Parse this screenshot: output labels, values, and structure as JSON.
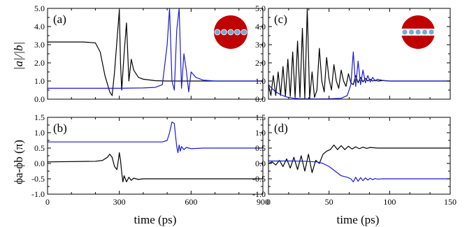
{
  "chart_data": [
    {
      "type": "line",
      "panel_label": "(a)",
      "xlim": [
        0,
        900
      ],
      "ylim": [
        0.0,
        5.0
      ],
      "yticks": [
        "0.0",
        "1.0",
        "2.0",
        "3.0",
        "4.0",
        "5.0"
      ],
      "xticks": [],
      "ylabel": "|a|/|b|",
      "grid": false,
      "series": [
        {
          "color": "#000000",
          "x": [
            0,
            150,
            200,
            220,
            240,
            260,
            270,
            280,
            290,
            300,
            305,
            310,
            320,
            330,
            340,
            350,
            360,
            380,
            400,
            450,
            500,
            600,
            700,
            800,
            900
          ],
          "y": [
            3.15,
            3.15,
            3.1,
            2.6,
            1.3,
            0.4,
            0.2,
            1.5,
            3.2,
            4.9,
            2.0,
            0.5,
            2.5,
            4.2,
            1.0,
            2.2,
            1.6,
            1.2,
            1.1,
            1.02,
            1.0,
            1.0,
            1.0,
            1.0,
            1.0
          ]
        },
        {
          "color": "#1a1ad6",
          "x": [
            0,
            200,
            300,
            400,
            450,
            480,
            500,
            510,
            520,
            530,
            540,
            550,
            560,
            570,
            580,
            590,
            600,
            620,
            650,
            700,
            800,
            900
          ],
          "y": [
            0.6,
            0.6,
            0.6,
            0.62,
            0.65,
            0.8,
            3.0,
            5.0,
            1.0,
            0.5,
            3.8,
            5.0,
            0.6,
            2.5,
            1.6,
            0.4,
            1.5,
            1.2,
            1.05,
            1.0,
            1.0,
            1.0
          ]
        }
      ],
      "inset": "red-disk-with-horizontal-chain"
    },
    {
      "type": "line",
      "panel_label": "(c)",
      "xlim": [
        0,
        150
      ],
      "ylim": [
        0.0,
        5.0
      ],
      "yticks": [
        "0.0",
        "1.0",
        "2.0",
        "3.0",
        "4.0",
        "5.0"
      ],
      "xticks": [],
      "grid": false,
      "series": [
        {
          "color": "#000000",
          "x": [
            0,
            2,
            4,
            6,
            8,
            10,
            12,
            14,
            16,
            18,
            20,
            22,
            24,
            26,
            28,
            30,
            32,
            34,
            36,
            38,
            40,
            42,
            44,
            46,
            48,
            50,
            52,
            54,
            56,
            58,
            60,
            62,
            64,
            66,
            68,
            70,
            72,
            74,
            76,
            78,
            80,
            82,
            84,
            86,
            88,
            90,
            95,
            100,
            110,
            120,
            130,
            140,
            150
          ],
          "y": [
            0.8,
            0.2,
            1.3,
            0.2,
            1.5,
            0.2,
            1.8,
            0.15,
            2.2,
            0.15,
            2.6,
            0.1,
            3.2,
            0.1,
            3.9,
            0.05,
            5.0,
            0.05,
            1.5,
            0.1,
            0.5,
            2.8,
            1.0,
            0.4,
            2.3,
            1.1,
            0.5,
            1.9,
            1.0,
            0.6,
            1.6,
            1.0,
            0.7,
            1.4,
            0.9,
            0.8,
            1.3,
            0.9,
            1.2,
            0.95,
            1.15,
            1.0,
            1.1,
            1.0,
            1.05,
            1.0,
            1.03,
            1.0,
            1.0,
            1.0,
            1.0,
            1.0,
            1.0
          ]
        },
        {
          "color": "#1a1ad6",
          "x": [
            0,
            5,
            10,
            15,
            20,
            25,
            30,
            40,
            50,
            60,
            65,
            68,
            70,
            72,
            74,
            76,
            78,
            80,
            82,
            84,
            86,
            88,
            90,
            95,
            100,
            110,
            120,
            130,
            140,
            150
          ],
          "y": [
            0.8,
            0.45,
            0.25,
            0.12,
            0.06,
            0.03,
            0.02,
            0.01,
            0.02,
            0.05,
            0.2,
            0.8,
            2.6,
            0.7,
            2.1,
            0.8,
            1.6,
            0.9,
            1.3,
            0.95,
            1.2,
            1.0,
            1.1,
            1.02,
            1.0,
            1.0,
            1.0,
            1.0,
            1.0,
            1.0
          ]
        }
      ],
      "inset": "red-disk-with-white-stripe-chain"
    },
    {
      "type": "line",
      "panel_label": "(b)",
      "xlim": [
        0,
        900
      ],
      "ylim": [
        -1.0,
        1.5
      ],
      "yticks": [
        "-1.0",
        "-0.5",
        "0.0",
        "0.5",
        "1.0",
        "1.5"
      ],
      "xticks": [
        "0",
        "300",
        "600",
        "900"
      ],
      "ylabel": "ϕa-ϕb (π)",
      "xlabel": "time (ps)",
      "grid": false,
      "series": [
        {
          "color": "#1a1ad6",
          "x": [
            0,
            400,
            480,
            500,
            510,
            520,
            530,
            535,
            540,
            545,
            550,
            555,
            560,
            570,
            580,
            600,
            650,
            700,
            800,
            900
          ],
          "y": [
            0.7,
            0.7,
            0.7,
            0.75,
            1.0,
            1.35,
            1.3,
            0.9,
            0.55,
            0.35,
            0.6,
            0.4,
            0.55,
            0.45,
            0.52,
            0.48,
            0.5,
            0.5,
            0.5,
            0.5
          ]
        },
        {
          "color": "#000000",
          "x": [
            0,
            200,
            230,
            250,
            260,
            270,
            280,
            290,
            295,
            300,
            305,
            310,
            315,
            320,
            330,
            340,
            350,
            360,
            380,
            400,
            500,
            600,
            700,
            800,
            900
          ],
          "y": [
            0.05,
            0.07,
            0.1,
            0.2,
            0.3,
            0.2,
            -0.1,
            -0.2,
            0.05,
            0.35,
            0.1,
            -0.3,
            -0.6,
            -0.4,
            -0.6,
            -0.45,
            -0.55,
            -0.48,
            -0.52,
            -0.5,
            -0.5,
            -0.5,
            -0.5,
            -0.5,
            -0.5
          ]
        }
      ]
    },
    {
      "type": "line",
      "panel_label": "(d)",
      "xlim": [
        0,
        150
      ],
      "ylim": [
        -1.0,
        1.5
      ],
      "yticks": [
        "-1.0",
        "-0.5",
        "0.0",
        "0.5",
        "1.0",
        "1.5"
      ],
      "xticks": [
        "0",
        "50",
        "100",
        "150"
      ],
      "xlabel": "time (ps)",
      "grid": false,
      "series": [
        {
          "color": "#000000",
          "x": [
            0,
            3,
            6,
            9,
            12,
            15,
            18,
            21,
            24,
            27,
            30,
            33,
            36,
            39,
            42,
            45,
            48,
            51,
            54,
            57,
            60,
            63,
            66,
            69,
            72,
            75,
            78,
            81,
            84,
            90,
            100,
            110,
            120,
            130,
            140,
            150
          ],
          "y": [
            0.0,
            0.05,
            -0.05,
            0.1,
            -0.1,
            0.15,
            -0.15,
            0.2,
            -0.2,
            0.25,
            -0.25,
            0.3,
            -0.3,
            0.1,
            0.0,
            0.3,
            0.4,
            0.45,
            0.6,
            0.45,
            0.58,
            0.45,
            0.56,
            0.47,
            0.54,
            0.48,
            0.53,
            0.49,
            0.52,
            0.5,
            0.5,
            0.5,
            0.5,
            0.5,
            0.5,
            0.5
          ]
        },
        {
          "color": "#1a1ad6",
          "x": [
            0,
            10,
            20,
            30,
            40,
            45,
            50,
            55,
            60,
            65,
            68,
            70,
            72,
            74,
            76,
            78,
            80,
            82,
            84,
            86,
            88,
            90,
            95,
            100,
            110,
            120,
            130,
            140,
            150
          ],
          "y": [
            0.08,
            0.08,
            0.08,
            0.07,
            0.05,
            0.0,
            -0.1,
            -0.25,
            -0.4,
            -0.45,
            -0.5,
            -0.6,
            -0.45,
            -0.58,
            -0.46,
            -0.56,
            -0.47,
            -0.54,
            -0.48,
            -0.53,
            -0.49,
            -0.51,
            -0.5,
            -0.5,
            -0.5,
            -0.5,
            -0.5,
            -0.5,
            -0.5
          ]
        }
      ]
    }
  ]
}
